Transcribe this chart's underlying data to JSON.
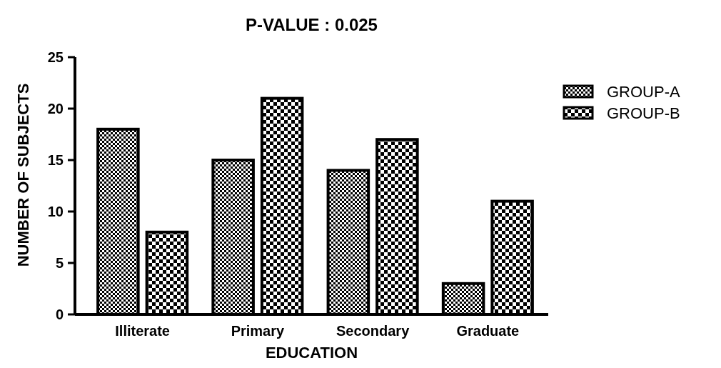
{
  "chart_data": {
    "type": "bar",
    "title": "P-VALUE : 0.025",
    "xlabel": "EDUCATION",
    "ylabel": "NUMBER OF SUBJECTS",
    "categories": [
      "Illiterate",
      "Primary",
      "Secondary",
      "Graduate"
    ],
    "series": [
      {
        "name": "GROUP-A",
        "color": "#000000",
        "values": [
          18,
          15,
          14,
          3
        ]
      },
      {
        "name": "GROUP-B",
        "color": "#000000",
        "values": [
          8,
          21,
          17,
          11
        ]
      }
    ],
    "ylim": [
      0,
      25
    ],
    "yticks": [
      0,
      5,
      10,
      15,
      20,
      25
    ],
    "grid": false,
    "legend": "right"
  }
}
